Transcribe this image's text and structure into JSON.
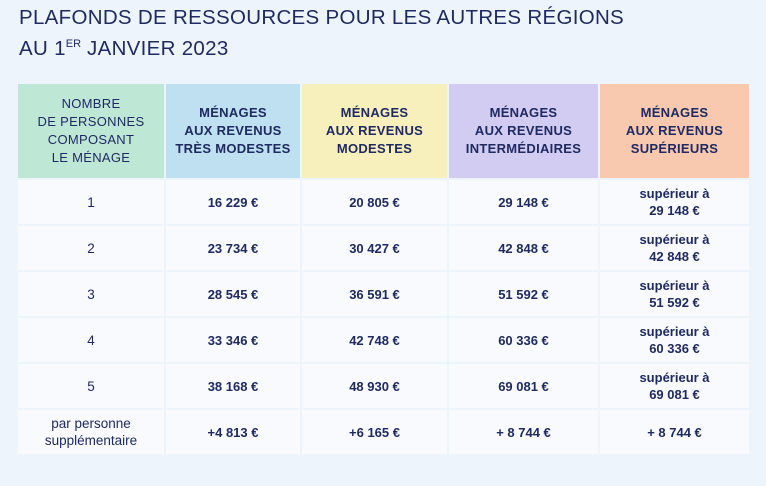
{
  "title_line1": "PLAFONDS DE RESSOURCES POUR LES AUTRES RÉGIONS",
  "title_line2_prefix": "AU 1",
  "title_line2_sup": "ER",
  "title_line2_suffix": " JANVIER 2023",
  "headers": {
    "persons": [
      "NOMBRE",
      "DE PERSONNES",
      "COMPOSANT",
      "LE MÉNAGE"
    ],
    "tres_modestes": [
      "MÉNAGES",
      "AUX REVENUS",
      "TRÈS MODESTES"
    ],
    "modestes": [
      "MÉNAGES",
      "AUX REVENUS",
      "MODESTES"
    ],
    "intermediaires": [
      "MÉNAGES",
      "AUX REVENUS",
      "INTERMÉDIAIRES"
    ],
    "superieurs": [
      "MÉNAGES",
      "AUX REVENUS",
      "SUPÉRIEURS"
    ]
  },
  "rows": [
    {
      "persons": [
        "1"
      ],
      "tres_modestes": "16 229 €",
      "modestes": "20 805 €",
      "intermediaires": "29 148 €",
      "superieurs": [
        "supérieur à",
        "29 148 €"
      ]
    },
    {
      "persons": [
        "2"
      ],
      "tres_modestes": "23 734 €",
      "modestes": "30 427 €",
      "intermediaires": "42 848 €",
      "superieurs": [
        "supérieur à",
        "42 848 €"
      ]
    },
    {
      "persons": [
        "3"
      ],
      "tres_modestes": "28 545 €",
      "modestes": "36 591 €",
      "intermediaires": "51 592 €",
      "superieurs": [
        "supérieur à",
        "51 592 €"
      ]
    },
    {
      "persons": [
        "4"
      ],
      "tres_modestes": "33 346 €",
      "modestes": "42 748 €",
      "intermediaires": "60 336 €",
      "superieurs": [
        "supérieur à",
        "60 336 €"
      ]
    },
    {
      "persons": [
        "5"
      ],
      "tres_modestes": "38 168 €",
      "modestes": "48 930 €",
      "intermediaires": "69 081 €",
      "superieurs": [
        "supérieur à",
        "69 081 €"
      ]
    },
    {
      "persons": [
        "par personne",
        "supplémentaire"
      ],
      "tres_modestes": "+4 813 €",
      "modestes": "+6 165 €",
      "intermediaires": "+ 8 744 €",
      "superieurs": [
        "+ 8 744 €"
      ]
    }
  ],
  "colors": {
    "background": "#eef4fb",
    "text": "#1f2a60",
    "col_persons": "#bfe7d6",
    "col_tres_modestes": "#bfe0f0",
    "col_modestes": "#f7efbc",
    "col_intermediaires": "#d2cbf2",
    "col_superieurs": "#f8c9af",
    "cell": "#f8fafe"
  }
}
